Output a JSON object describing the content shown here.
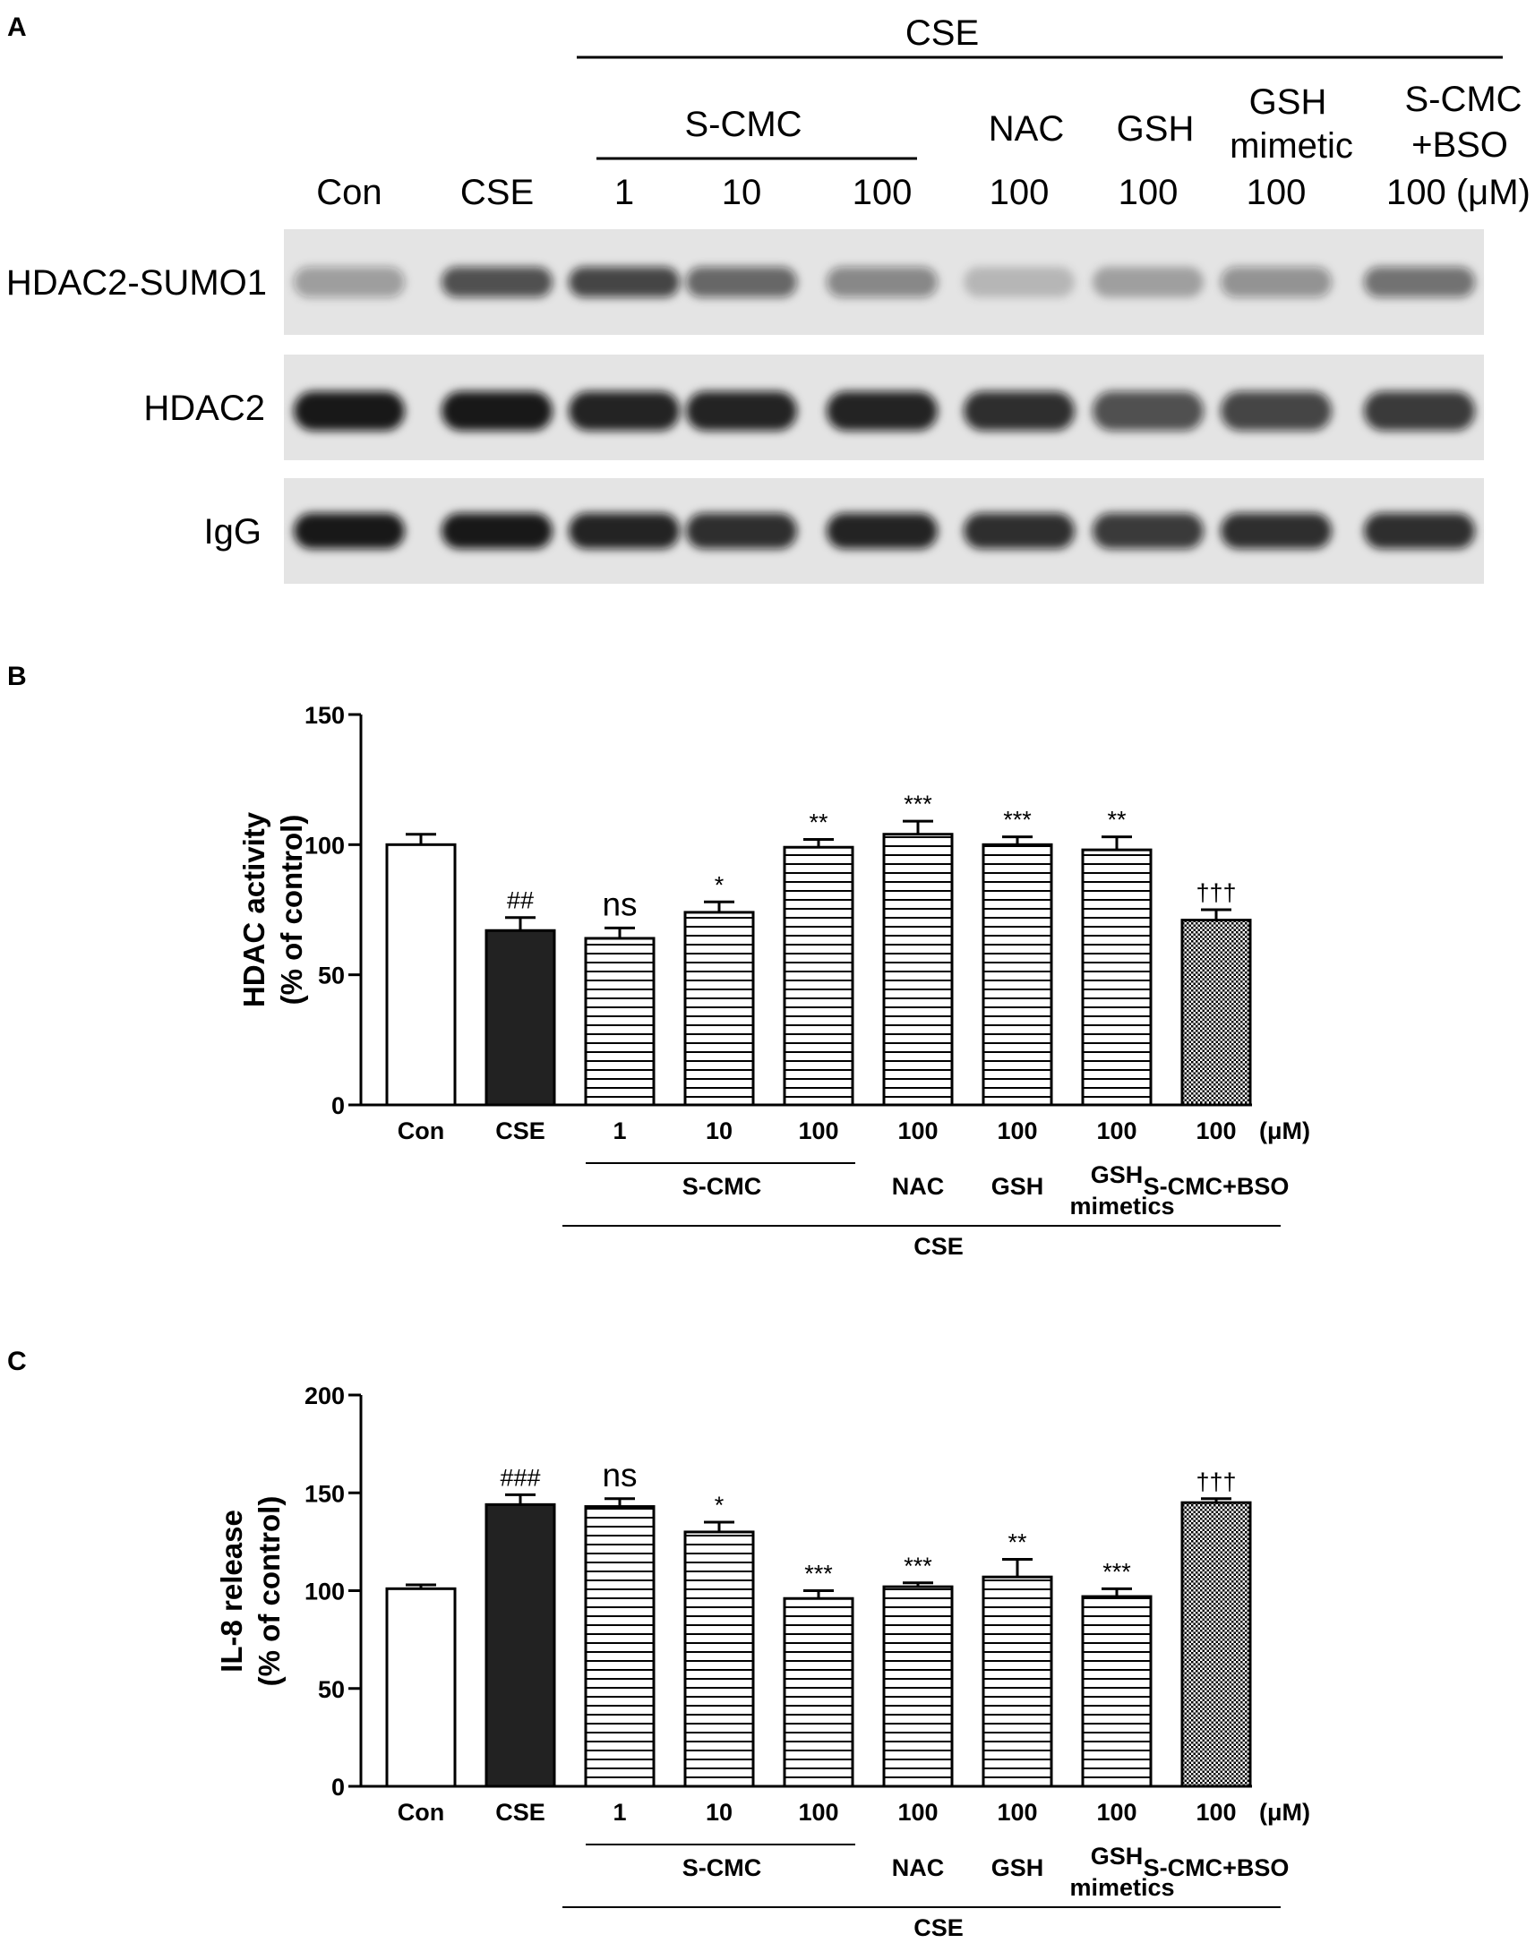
{
  "panels": {
    "a": "A",
    "b": "B",
    "c": "C"
  },
  "blot": {
    "cse_header": "CSE",
    "scmc_header": "S-CMC",
    "group_labels": {
      "nac": "NAC",
      "gsh": "GSH",
      "gsh_mimetic_1": "GSH",
      "gsh_mimetic_2": "mimetic",
      "scmc_bso_1": "S-CMC",
      "scmc_bso_2": "+BSO"
    },
    "lanes": [
      "Con",
      "CSE",
      "1",
      "10",
      "100",
      "100",
      "100",
      "100",
      "100 (μM)"
    ],
    "rows": [
      "HDAC2-SUMO1",
      "HDAC2",
      "IgG"
    ],
    "band_intensity": {
      "HDAC2-SUMO1": [
        0.35,
        0.7,
        0.75,
        0.6,
        0.45,
        0.2,
        0.3,
        0.4,
        0.55
      ],
      "HDAC2": [
        0.95,
        0.95,
        0.9,
        0.9,
        0.9,
        0.85,
        0.7,
        0.75,
        0.8
      ],
      "IgG": [
        0.95,
        0.95,
        0.9,
        0.85,
        0.9,
        0.85,
        0.8,
        0.85,
        0.85
      ]
    }
  },
  "chart_data": [
    {
      "type": "bar",
      "categories": [
        "Con",
        "CSE",
        "1",
        "10",
        "100",
        "100",
        "100",
        "100",
        "100"
      ],
      "values": [
        100,
        67,
        64,
        74,
        99,
        104,
        100,
        98,
        71
      ],
      "errors": [
        4,
        5,
        4,
        4,
        3,
        5,
        3,
        5,
        4
      ],
      "significance": [
        "",
        "##",
        "ns",
        "*",
        "**",
        "***",
        "***",
        "**",
        "†††"
      ],
      "ylabel": [
        "HDAC activity",
        "(% of control)"
      ],
      "ylim": [
        0,
        150
      ],
      "yticks": [
        "0",
        "50",
        "100",
        "150"
      ],
      "unit": "(μM)",
      "patterns": [
        "open",
        "solid",
        "hlines",
        "hlines",
        "hlines",
        "hlines",
        "hlines",
        "hlines",
        "dots"
      ],
      "groups": {
        "scmc": "S-CMC",
        "nac": "NAC",
        "gsh": "GSH",
        "gsh_mimetics_1": "GSH",
        "gsh_mimetics_2": "mimetics",
        "scmc_bso": "S-CMC+BSO",
        "cse": "CSE"
      }
    },
    {
      "type": "bar",
      "categories": [
        "Con",
        "CSE",
        "1",
        "10",
        "100",
        "100",
        "100",
        "100",
        "100"
      ],
      "values": [
        101,
        144,
        143,
        130,
        96,
        102,
        107,
        97,
        145
      ],
      "errors": [
        2,
        5,
        4,
        5,
        4,
        2,
        9,
        4,
        2
      ],
      "significance": [
        "",
        "###",
        "ns",
        "*",
        "***",
        "***",
        "**",
        "***",
        "†††"
      ],
      "ylabel": [
        "IL-8 release",
        "(% of control)"
      ],
      "ylim": [
        0,
        200
      ],
      "yticks": [
        "0",
        "50",
        "100",
        "150",
        "200"
      ],
      "unit": "(μM)",
      "patterns": [
        "open",
        "solid",
        "hlines",
        "hlines",
        "hlines",
        "hlines",
        "hlines",
        "hlines",
        "dots"
      ],
      "groups": {
        "scmc": "S-CMC",
        "nac": "NAC",
        "gsh": "GSH",
        "gsh_mimetics_1": "GSH",
        "gsh_mimetics_2": "mimetics",
        "scmc_bso": "S-CMC+BSO",
        "cse": "CSE"
      }
    }
  ]
}
